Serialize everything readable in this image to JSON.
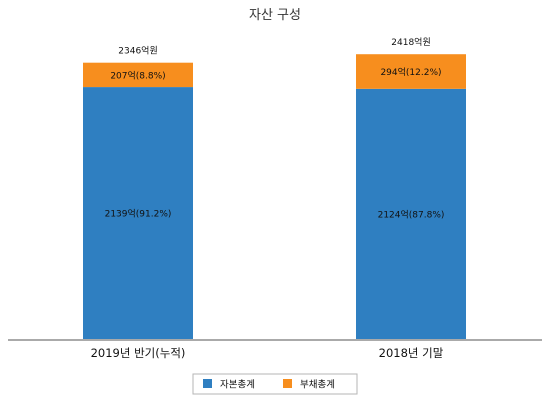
{
  "chart_data": {
    "type": "bar",
    "stacked": true,
    "title": "자산 구성",
    "categories": [
      "2019년 반기(누적)",
      "2018년 기말"
    ],
    "totals": [
      2346,
      2418
    ],
    "total_labels": [
      "2346억원",
      "2418억원"
    ],
    "series": [
      {
        "name": "자본총계",
        "color": "#2f7fc1",
        "values": [
          2139,
          2124
        ],
        "labels": [
          "2139억(91.2%)",
          "2124억(87.8%)"
        ]
      },
      {
        "name": "부채총계",
        "color": "#f78e1e",
        "values": [
          207,
          294
        ],
        "labels": [
          "207억(8.8%)",
          "294억(12.2%)"
        ]
      }
    ],
    "ylim": [
      0,
      2700
    ],
    "grid": false,
    "legend_position": "bottom"
  }
}
